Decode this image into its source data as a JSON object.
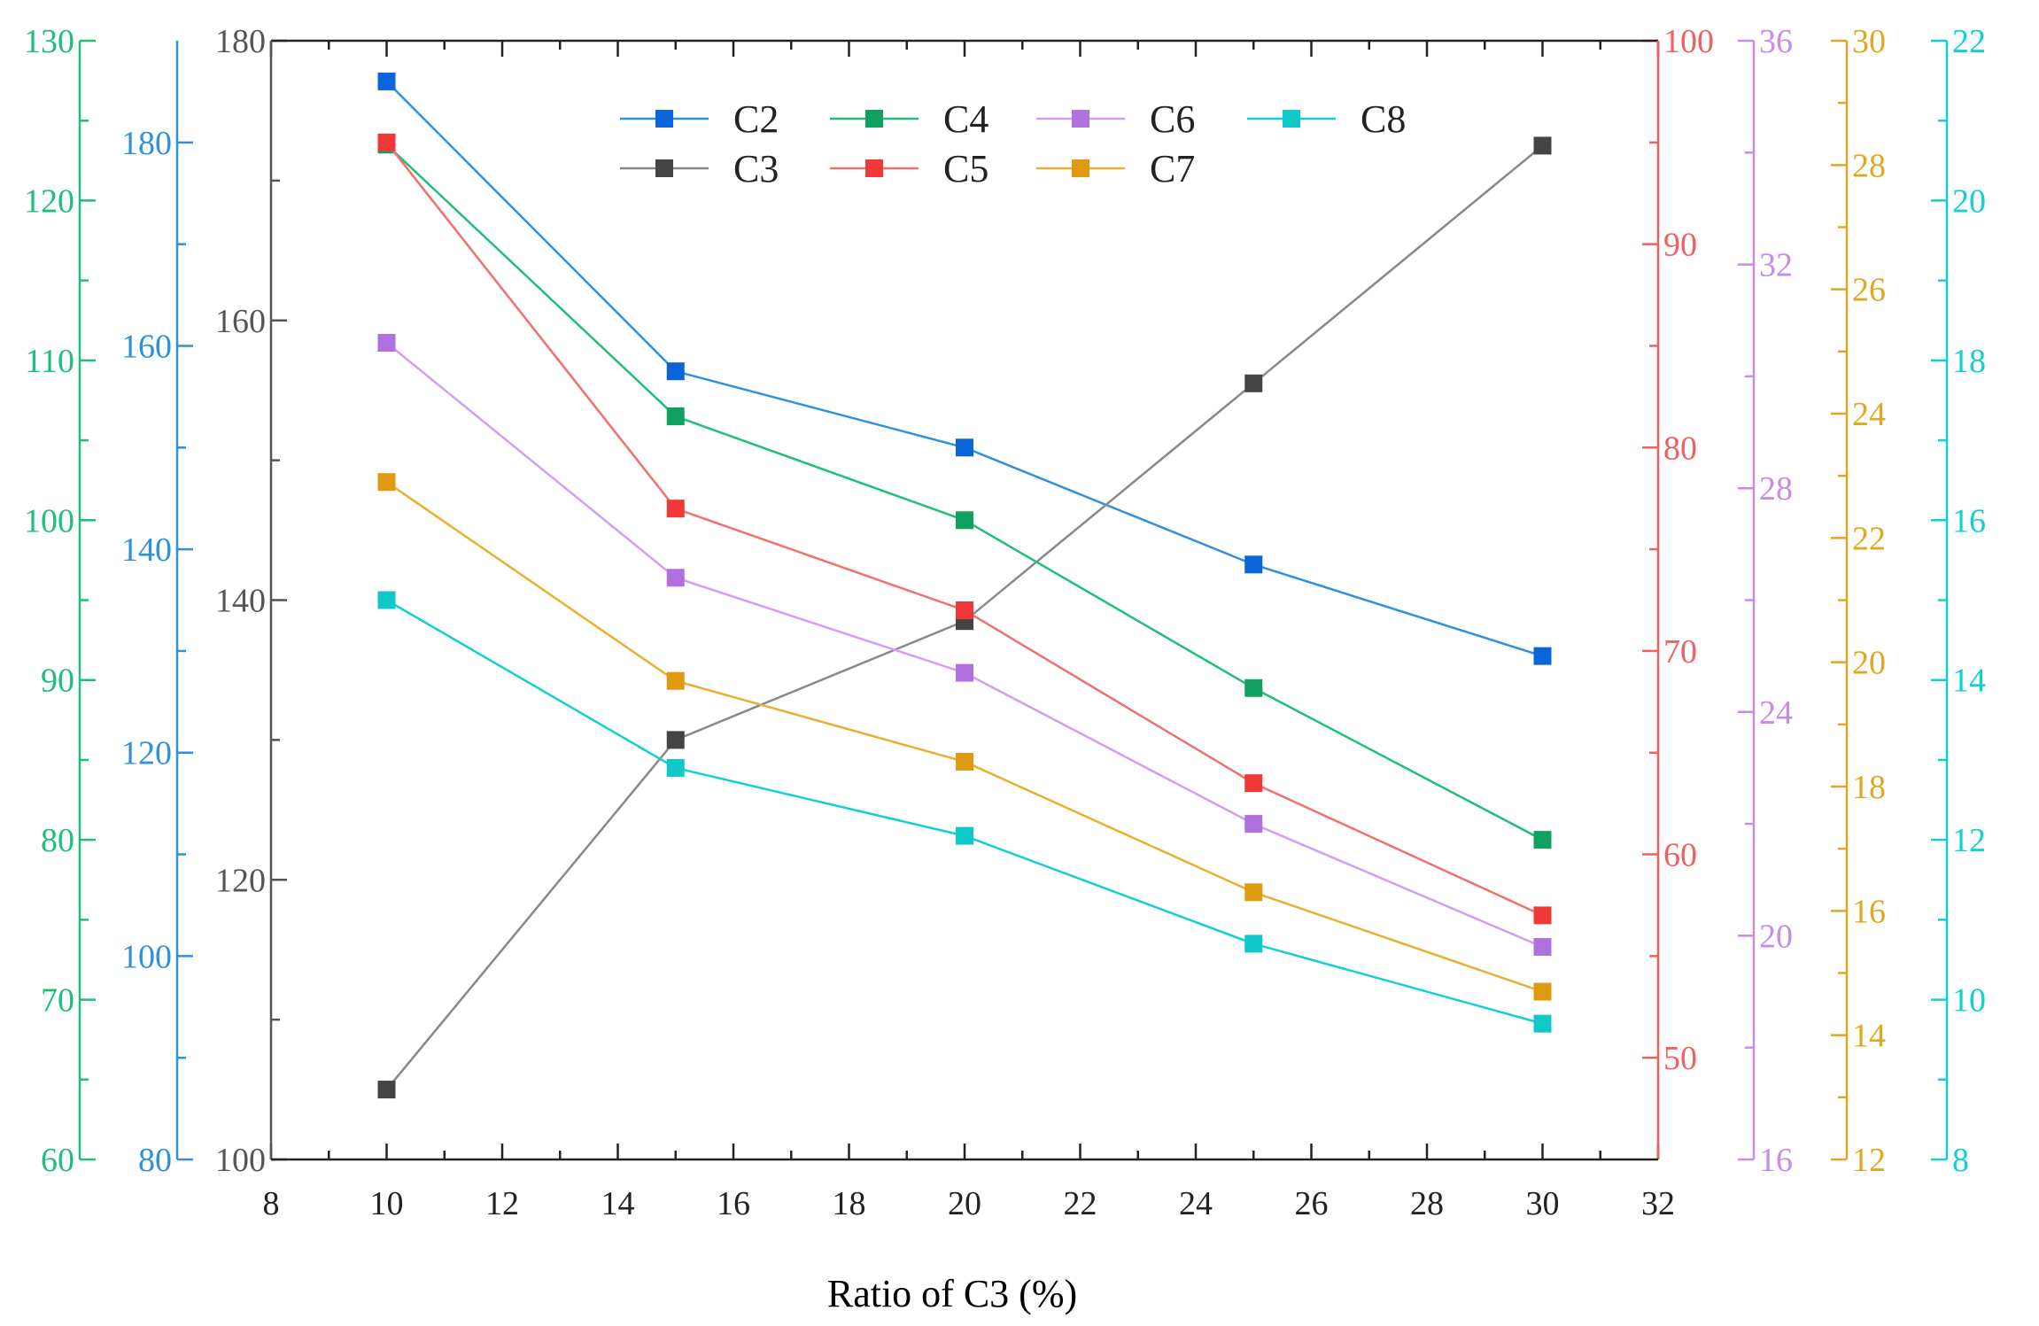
{
  "chart_data": {
    "type": "line",
    "title": "",
    "xlabel": "Ratio of C3 (%)",
    "x": [
      10,
      15,
      20,
      25,
      30
    ],
    "xlim": [
      8,
      32
    ],
    "xticks": [
      "8",
      "10",
      "12",
      "14",
      "16",
      "18",
      "20",
      "22",
      "24",
      "26",
      "28",
      "30",
      "32"
    ],
    "legend_position": "top",
    "grid": false,
    "axes": [
      {
        "id": "c3",
        "color": "#555555",
        "ylim": [
          100,
          180
        ],
        "ticks": [
          "100",
          "120",
          "140",
          "160",
          "180"
        ]
      },
      {
        "id": "c2",
        "color": "#2f8fe0",
        "ylim": [
          80,
          190
        ],
        "ticks": [
          "80",
          "100",
          "120",
          "140",
          "160",
          "180"
        ]
      },
      {
        "id": "c4",
        "color": "#1fbf7a",
        "ylim": [
          60,
          130
        ],
        "ticks": [
          "60",
          "70",
          "80",
          "90",
          "100",
          "110",
          "120",
          "130"
        ]
      },
      {
        "id": "c5",
        "color": "#f06060",
        "ylim": [
          45,
          100
        ],
        "ticks": [
          "50",
          "60",
          "70",
          "80",
          "90",
          "100"
        ]
      },
      {
        "id": "c6",
        "color": "#c78be8",
        "ylim": [
          16,
          36
        ],
        "ticks": [
          "16",
          "20",
          "24",
          "28",
          "32",
          "36"
        ]
      },
      {
        "id": "c7",
        "color": "#e0a820",
        "ylim": [
          12,
          30
        ],
        "ticks": [
          "12",
          "14",
          "16",
          "18",
          "20",
          "22",
          "24",
          "26",
          "28",
          "30"
        ]
      },
      {
        "id": "c8",
        "color": "#10d0d0",
        "ylim": [
          8,
          22
        ],
        "ticks": [
          "8",
          "10",
          "12",
          "14",
          "16",
          "18",
          "20",
          "22"
        ]
      }
    ],
    "series": [
      {
        "name": "C2",
        "axis": "c2",
        "color": "#2f8fe0",
        "marker": "#0a66d8",
        "values": [
          186,
          157.5,
          150,
          138.5,
          129.5
        ]
      },
      {
        "name": "C3",
        "axis": "c3",
        "color": "#888888",
        "marker": "#444444",
        "values": [
          105,
          130,
          138.5,
          155.5,
          172.5
        ]
      },
      {
        "name": "C4",
        "axis": "c4",
        "color": "#1fbf7a",
        "marker": "#10a060",
        "values": [
          123.5,
          106.5,
          100,
          89.5,
          80
        ]
      },
      {
        "name": "C5",
        "axis": "c5",
        "color": "#f07070",
        "marker": "#f03838",
        "values": [
          95,
          77,
          72,
          63.5,
          57
        ]
      },
      {
        "name": "C6",
        "axis": "c6",
        "color": "#d0a0f0",
        "marker": "#b070e0",
        "values": [
          30.6,
          26.4,
          24.7,
          22,
          19.8
        ]
      },
      {
        "name": "C7",
        "axis": "c7",
        "color": "#e8b030",
        "marker": "#e09a10",
        "values": [
          22.9,
          19.7,
          18.4,
          16.3,
          14.7
        ]
      },
      {
        "name": "C8",
        "axis": "c8",
        "color": "#10d0d0",
        "marker": "#10c8c8",
        "values": [
          15,
          12.9,
          12.05,
          10.7,
          9.7
        ]
      }
    ]
  }
}
